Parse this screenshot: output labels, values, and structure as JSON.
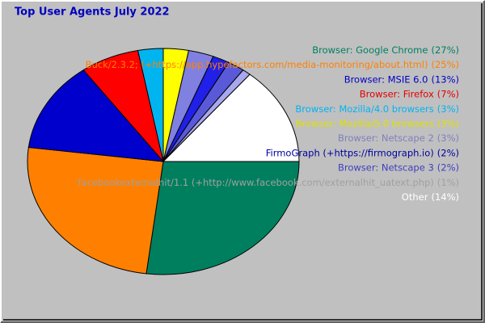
{
  "chart_data": {
    "type": "pie",
    "title": "Top User Agents July 2022",
    "categories": [
      "Browser: Google Chrome",
      "Buck/2.3.2; (+https://app.hypefactors.com/media-monitoring/about.html)",
      "Browser: MSIE 6.0",
      "Browser: Firefox",
      "Browser: Mozilla/4.0 browsers",
      "Browser: Mozilla/5.0 browsers",
      "Browser: Netscape 2",
      "FirmoGraph (+https://firmograph.io)",
      "Browser: Netscape 3",
      "facebookexternalhit/1.1 (+http://www.facebook.com/externalhit_uatext.php)",
      "Other"
    ],
    "values": [
      27,
      25,
      13,
      7,
      3,
      3,
      3,
      2,
      2,
      1,
      14
    ],
    "value_labels": [
      "(27%)",
      "(25%)",
      "(13%)",
      "(7%)",
      "(3%)",
      "(3%)",
      "(3%)",
      "(2%)",
      "(2%)",
      "(1%)",
      "(14%)"
    ],
    "colors": [
      "#007f5f",
      "#ff8000",
      "#0000cc",
      "#ff0000",
      "#00b4f0",
      "#ffff00",
      "#8080e0",
      "#2020e8",
      "#5a5ad8",
      "#a8a8f0",
      "#ffffff"
    ],
    "label_colors": [
      "#007f5f",
      "#ff8000",
      "#0000c0",
      "#e00000",
      "#00b4f0",
      "#e0e000",
      "#7f7fc0",
      "#0000a0",
      "#4040c0",
      "#a0a0a0",
      "#ffffff"
    ]
  }
}
